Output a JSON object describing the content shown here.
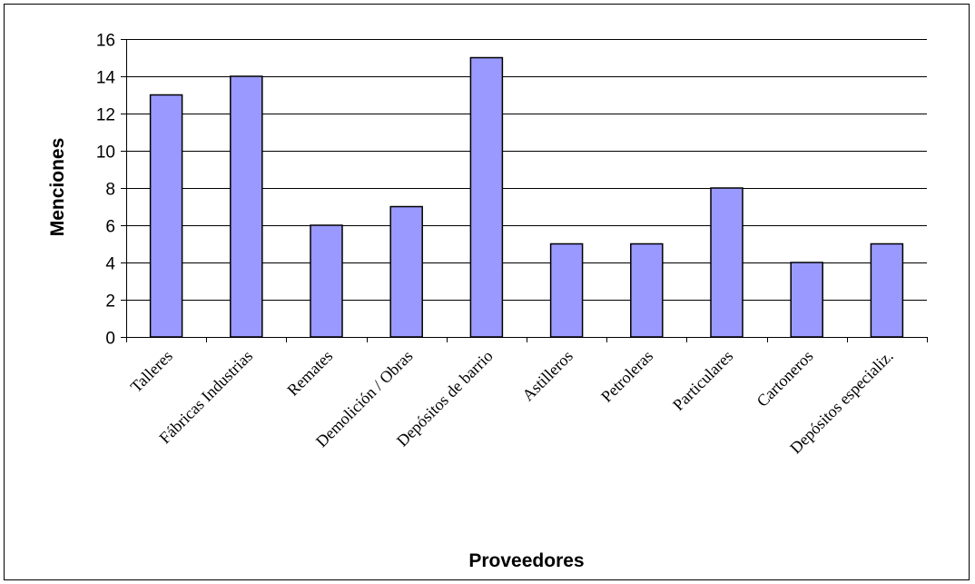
{
  "chart_data": {
    "type": "bar",
    "title": "",
    "xlabel": "Proveedores",
    "ylabel": "Menciones",
    "categories": [
      "Talleres",
      "Fábricas Industrias",
      "Remates",
      "Demolición / Obras",
      "Depósitos de barrio",
      "Astilleros",
      "Petroleras",
      "Particulares",
      "Cartoneros",
      "Depósitos especializ."
    ],
    "values": [
      13,
      14,
      6,
      7,
      15,
      5,
      5,
      8,
      4,
      5
    ],
    "ylim": [
      0,
      16
    ],
    "yticks": [
      0,
      2,
      4,
      6,
      8,
      10,
      12,
      14,
      16
    ],
    "grid": true,
    "legend": "none",
    "colors": {
      "bar_fill": "#9999ff",
      "bar_stroke": "#000000",
      "grid": "#000000",
      "background": "#ffffff"
    }
  }
}
